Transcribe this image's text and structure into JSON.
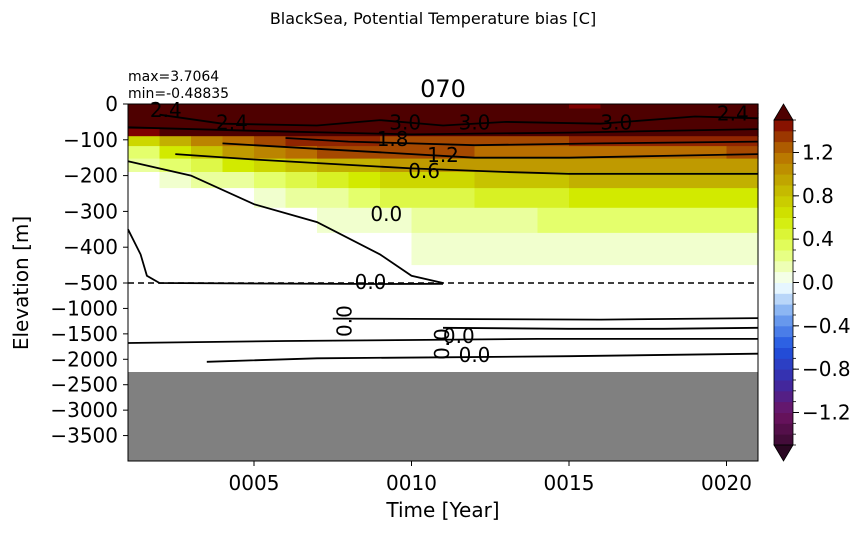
{
  "figure": {
    "suptitle": "BlackSea, Potential Temperature bias [C]",
    "title": "070",
    "stats_max": "max=3.7064",
    "stats_min": "min=-0.48835"
  },
  "chart_data": {
    "type": "heatmap",
    "xlabel": "Time [Year]",
    "ylabel": "Elevation [m]",
    "xlim": [
      1,
      21
    ],
    "x_ticks": [
      5,
      10,
      15,
      20
    ],
    "x_tick_labels": [
      "0005",
      "0010",
      "0015",
      "0020"
    ],
    "upper_panel": {
      "ylim": [
        -500,
        0
      ],
      "y_ticks": [
        0,
        -100,
        -200,
        -300,
        -400,
        -500
      ],
      "y_tick_labels": [
        "0",
        "−100",
        "−200",
        "−300",
        "−400",
        "−500"
      ]
    },
    "lower_panel": {
      "ylim": [
        -4000,
        -500
      ],
      "y_ticks": [
        -1000,
        -1500,
        -2000,
        -2500,
        -3000,
        -3500
      ],
      "y_tick_labels": [
        "−1000",
        "−1500",
        "−2000",
        "−2500",
        "−3000",
        "−3500"
      ]
    },
    "no_data_below": -2250,
    "depth_levels": [
      -5,
      -20,
      -30,
      -45,
      -60,
      -80,
      -100,
      -135,
      -170,
      -210,
      -260,
      -320,
      -400,
      -500,
      -700,
      -1000,
      -1350,
      -1700,
      -2000,
      -2250
    ],
    "level_samples": {
      "-5": [
        3.2,
        2.2,
        2.8,
        3.5,
        2.4,
        1.8,
        3.0,
        2.6
      ],
      "-20": [
        3.0,
        3.4,
        3.7064,
        3.1,
        3.3,
        3.5,
        3.6,
        3.2
      ],
      "-45": [
        2.6,
        3.2,
        3.5,
        3.0,
        3.1,
        3.4,
        3.3,
        2.9
      ],
      "-80": [
        1.8,
        2.4,
        2.6,
        2.3,
        2.4,
        2.5,
        2.4,
        2.1
      ],
      "-100": [
        0.6,
        1.2,
        1.5,
        1.3,
        1.3,
        1.4,
        1.4,
        1.4
      ],
      "-135": [
        0.2,
        0.9,
        1.3,
        1.3,
        1.2,
        1.2,
        1.2,
        1.3
      ],
      "-170": [
        0.1,
        0.5,
        0.9,
        1.0,
        1.0,
        1.0,
        1.0,
        1.0
      ],
      "-210": [
        0.0,
        0.2,
        0.5,
        0.7,
        0.8,
        0.9,
        0.9,
        0.9
      ],
      "-260": [
        -0.05,
        0.0,
        0.2,
        0.4,
        0.5,
        0.6,
        0.6,
        0.6
      ],
      "-320": [
        -0.05,
        -0.02,
        0.05,
        0.15,
        0.25,
        0.3,
        0.35,
        0.35
      ],
      "-400": [
        -0.05,
        -0.05,
        0.0,
        0.05,
        0.1,
        0.15,
        0.15,
        0.15
      ],
      "-500": [
        -0.05,
        -0.05,
        -0.02,
        0.0,
        0.02,
        0.05,
        0.05,
        0.05
      ],
      "-1000": [
        -0.01,
        0.01,
        0.01,
        0.01,
        0.01,
        0.01,
        0.01,
        0.01
      ],
      "-2000": [
        -0.02,
        -0.01,
        0.0,
        0.01,
        0.01,
        0.01,
        0.01,
        0.01
      ]
    },
    "sample_years": [
      1,
      4,
      7,
      10,
      13,
      16,
      19,
      21
    ],
    "contour_levels": [
      0.0,
      0.6,
      1.2,
      1.8,
      2.4,
      3.0
    ],
    "contour_labels": [
      "0.0",
      "0.6",
      "1.2",
      "1.8",
      "2.4",
      "3.0",
      "3.0",
      "3.0",
      "2.4",
      "2.4",
      "0.0",
      "0.0",
      "0.0",
      "0.0",
      "0.0"
    ],
    "reference_line_elevation": -500,
    "colorbar": {
      "vmin": -1.5,
      "vmax": 1.5,
      "levels": 30,
      "extend": "both",
      "ticks": [
        1.2,
        0.8,
        0.4,
        0.0,
        -0.4,
        -0.8,
        -1.2
      ],
      "tick_labels": [
        "1.2",
        "0.8",
        "0.4",
        "0.0",
        "−0.4",
        "−0.8",
        "−1.2"
      ]
    },
    "no_data_color": "#808080"
  }
}
